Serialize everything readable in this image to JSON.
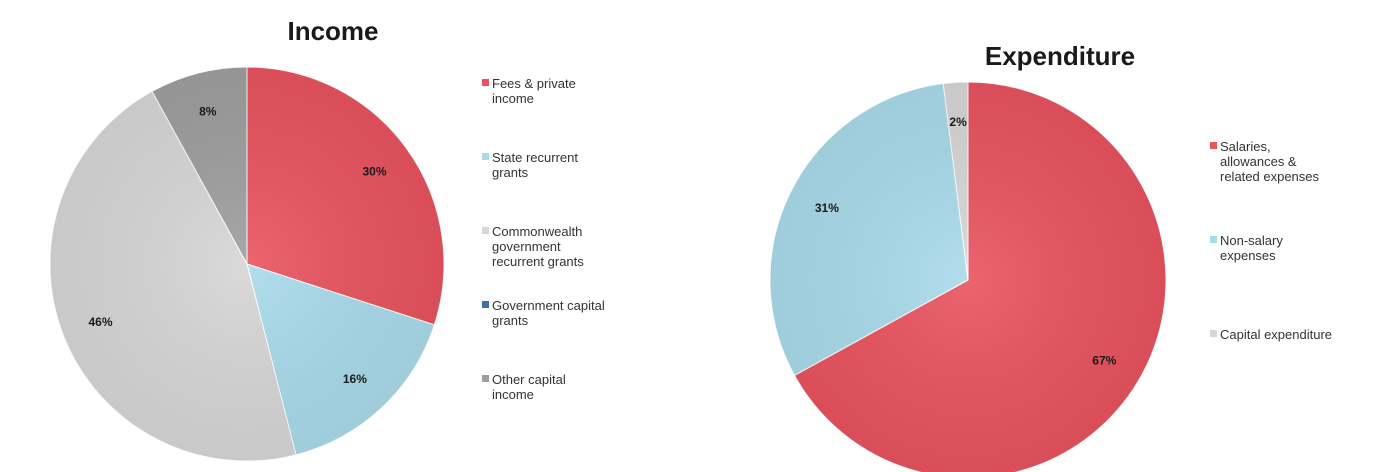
{
  "chart_data": [
    {
      "type": "pie",
      "title": "Income",
      "slices": [
        {
          "label": "Fees & private income",
          "value": 30,
          "display": "30%",
          "color": "#e8535f"
        },
        {
          "label": "State recurrent grants",
          "value": 16,
          "display": "16%",
          "color": "#a9daea"
        },
        {
          "label": "Commonwealth government recurrent grants",
          "value": 46,
          "display": "46%",
          "color": "#d6d6d6"
        },
        {
          "label": "Government capital grants",
          "value": 0,
          "display": "",
          "color": "#3a6fb0"
        },
        {
          "label": "Other capital income",
          "value": 8,
          "display": "8%",
          "color": "#9e9e9e"
        }
      ],
      "legend": {
        "placement": "right",
        "entries": [
          {
            "lines": [
              "Fees & private",
              "income"
            ],
            "color": "#e8535f"
          },
          {
            "lines": [
              "State recurrent",
              "grants"
            ],
            "color": "#a9daea"
          },
          {
            "lines": [
              "Commonwealth",
              "government",
              "recurrent grants"
            ],
            "color": "#d6d6d6"
          },
          {
            "lines": [
              "Government capital",
              "grants"
            ],
            "color": "#3a6fb0"
          },
          {
            "lines": [
              "Other capital",
              "income"
            ],
            "color": "#9e9e9e"
          }
        ]
      }
    },
    {
      "type": "pie",
      "title": "Expenditure",
      "slices": [
        {
          "label": "Salaries, allowances & related expenses",
          "value": 67,
          "display": "67%",
          "color": "#e8535f"
        },
        {
          "label": "Non-salary expenses",
          "value": 31,
          "display": "31%",
          "color": "#a9daea"
        },
        {
          "label": "Capital expenditure",
          "value": 2,
          "display": "2%",
          "color": "#d6d6d6"
        }
      ],
      "legend": {
        "placement": "right",
        "entries": [
          {
            "lines": [
              "Salaries,",
              "allowances &",
              "related expenses"
            ],
            "color": "#e8535f"
          },
          {
            "lines": [
              "Non-salary",
              "expenses"
            ],
            "color": "#a9daea"
          },
          {
            "lines": [
              "Capital expenditure"
            ],
            "color": "#d6d6d6"
          }
        ]
      }
    }
  ]
}
